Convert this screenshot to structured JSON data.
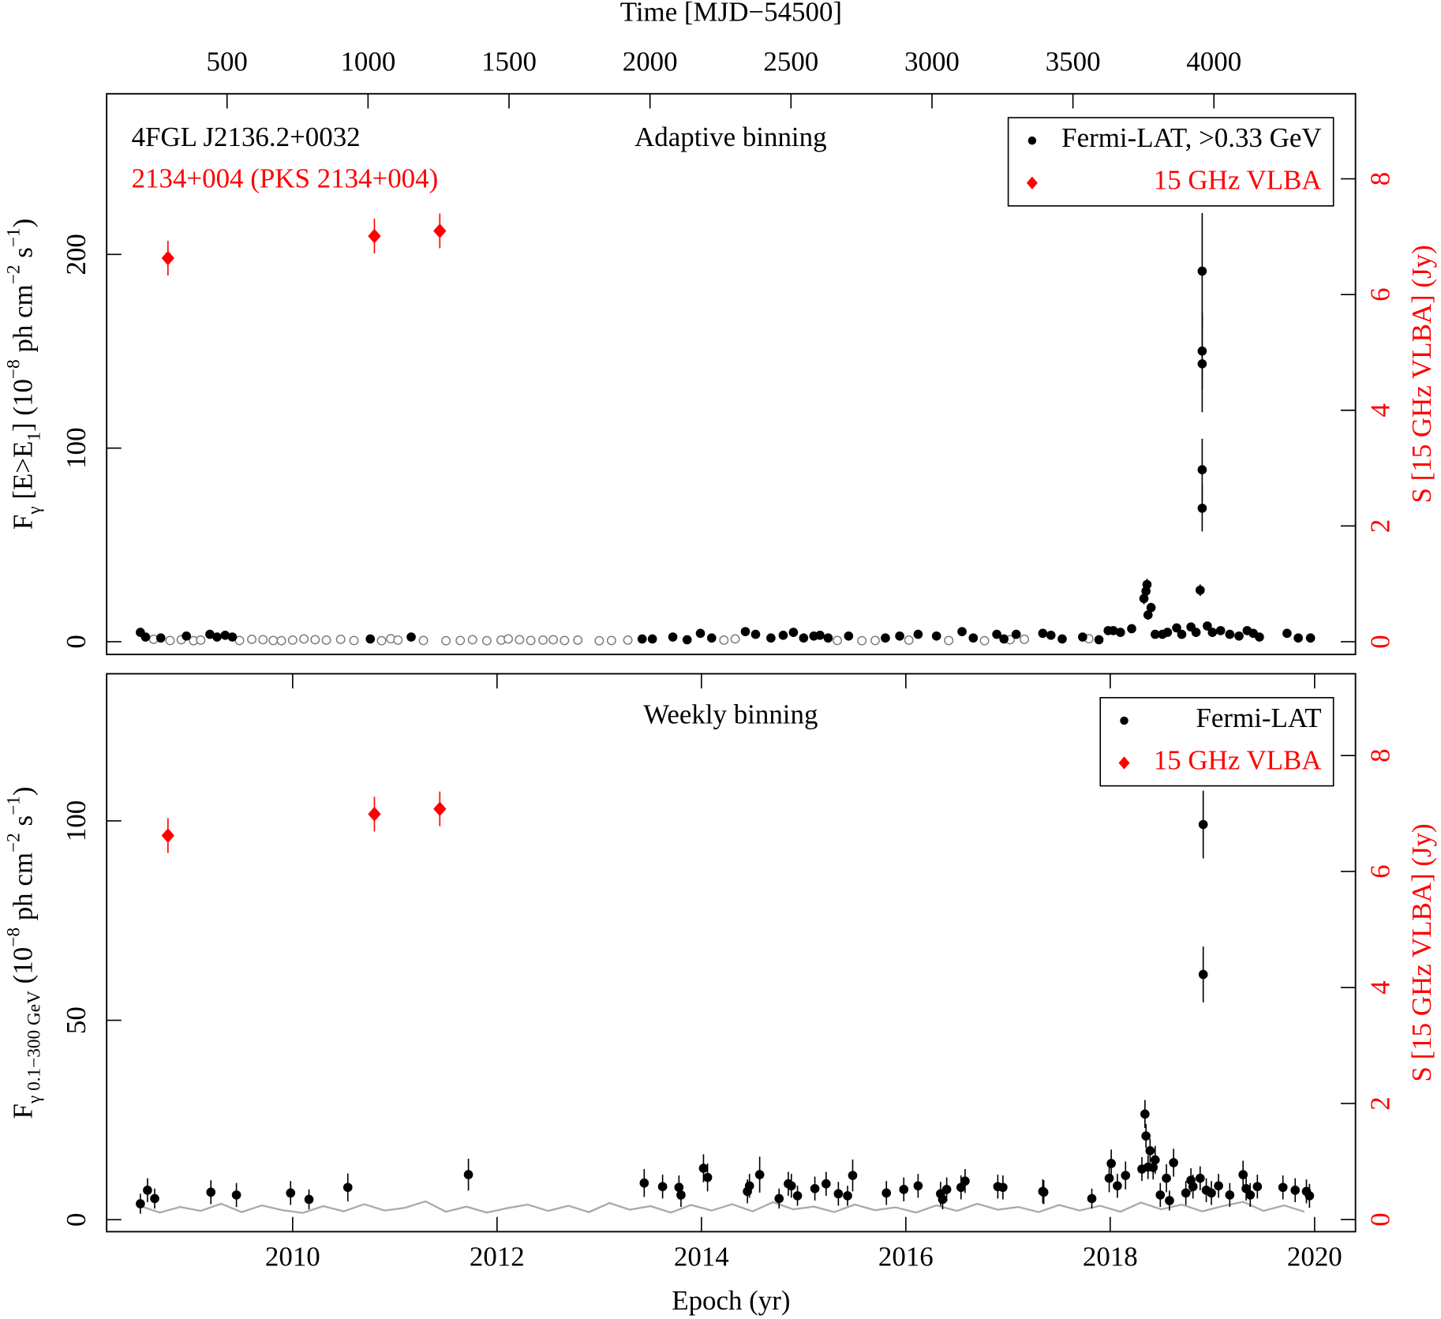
{
  "chart_data": [
    {
      "type": "scatter",
      "title": "Adaptive binning",
      "annotations": [
        {
          "text": "4FGL J2136.2+0032",
          "color": "#000000"
        },
        {
          "text": "2134+004 (PKS 2134+004)",
          "color": "#ff0000"
        }
      ],
      "ylabel": [
        "F",
        "γ",
        " [E>E",
        "1",
        "] (10",
        "−8",
        " ph cm",
        "−2",
        " s",
        "−1",
        ")"
      ],
      "y2label": "S [15 GHz VLBA] (Jy)",
      "y2color": "#ff0000",
      "x2label": "Time [MJD−54500]",
      "xlim": [
        2008.18,
        2020.4
      ],
      "x2lim": [
        73,
        4502
      ],
      "x2ticks": [
        500,
        1000,
        1500,
        2000,
        2500,
        3000,
        3500,
        4000
      ],
      "ylim": [
        -6.6,
        283
      ],
      "yticks": [
        0,
        100,
        200
      ],
      "y2lim": [
        -0.22,
        9.47
      ],
      "y2ticks": [
        0,
        2,
        4,
        6,
        8
      ],
      "legend": "upper right",
      "series": [
        {
          "marker": "open-circle",
          "color": "#777777",
          "x": [
            2008.64,
            2008.8,
            2008.91,
            2009.03,
            2009.1,
            2009.48,
            2009.6,
            2009.71,
            2009.81,
            2009.89,
            2010.0,
            2010.11,
            2010.22,
            2010.33,
            2010.47,
            2010.6,
            2010.87,
            2010.96,
            2011.03,
            2011.28,
            2011.5,
            2011.64,
            2011.76,
            2011.9,
            2012.04,
            2012.11,
            2012.22,
            2012.33,
            2012.45,
            2012.55,
            2012.66,
            2012.79,
            2013.0,
            2013.12,
            2013.28,
            2014.22,
            2014.33,
            2015.33,
            2015.57,
            2015.7,
            2016.03,
            2016.42,
            2016.77,
            2017.02,
            2017.16,
            2017.79
          ],
          "values": [
            1.2,
            0.6,
            1.0,
            0.5,
            0.8,
            0.6,
            1.2,
            1.0,
            0.6,
            0.5,
            0.8,
            1.4,
            1.0,
            0.8,
            1.2,
            0.6,
            0.5,
            1.5,
            0.8,
            0.6,
            0.5,
            0.6,
            1.0,
            0.5,
            0.8,
            1.4,
            1.0,
            0.6,
            0.8,
            1.0,
            0.6,
            0.8,
            0.5,
            0.6,
            0.8,
            0.8,
            1.4,
            0.6,
            0.5,
            0.6,
            0.8,
            0.6,
            0.5,
            1.0,
            1.2,
            1.5
          ]
        },
        {
          "name": "Fermi-LAT, >0.33 GeV",
          "marker": "filled-circle",
          "color": "#000000",
          "x": [
            2008.51,
            2008.56,
            2008.71,
            2008.96,
            2009.19,
            2009.26,
            2009.34,
            2009.41,
            2010.76,
            2011.16,
            2013.42,
            2013.52,
            2013.72,
            2013.86,
            2013.99,
            2014.1,
            2014.43,
            2014.53,
            2014.68,
            2014.8,
            2014.9,
            2015.0,
            2015.1,
            2015.16,
            2015.24,
            2015.44,
            2015.8,
            2015.94,
            2016.12,
            2016.3,
            2016.55,
            2016.66,
            2016.89,
            2016.96,
            2017.08,
            2017.34,
            2017.42,
            2017.53,
            2017.73,
            2017.89,
            2017.98,
            2018.03,
            2018.1,
            2018.21,
            2018.33,
            2018.35,
            2018.36,
            2018.37,
            2018.4,
            2018.44,
            2018.51,
            2018.56,
            2018.65,
            2018.7,
            2018.79,
            2018.84,
            2018.88,
            2018.9,
            2018.9,
            2018.9,
            2018.9,
            2018.9,
            2018.95,
            2019.0,
            2019.08,
            2019.17,
            2019.26,
            2019.34,
            2019.4,
            2019.46,
            2019.73,
            2019.84,
            2019.96
          ],
          "values": [
            4.8,
            2.4,
            1.9,
            2.9,
            3.8,
            2.4,
            3.3,
            2.4,
            1.4,
            2.4,
            1.4,
            1.4,
            2.4,
            1.0,
            4.3,
            1.9,
            5.2,
            3.8,
            1.9,
            3.3,
            4.8,
            1.9,
            2.9,
            3.3,
            1.9,
            2.9,
            1.9,
            2.9,
            3.8,
            2.9,
            5.2,
            1.9,
            3.8,
            1.4,
            3.8,
            4.3,
            3.3,
            1.4,
            2.4,
            1.0,
            5.7,
            5.7,
            4.8,
            6.7,
            22.3,
            26.1,
            29.5,
            13.8,
            17.6,
            3.8,
            3.8,
            4.8,
            7.1,
            3.8,
            7.6,
            4.8,
            26.6,
            68.9,
            88.8,
            143.5,
            150.1,
            191.4,
            8.1,
            4.8,
            5.7,
            3.8,
            2.9,
            5.7,
            4.3,
            2.4,
            4.3,
            1.9,
            1.9
          ],
          "errors": [
            1,
            1,
            1,
            1,
            1,
            1,
            1,
            1,
            1,
            1,
            1,
            1,
            1,
            1,
            1,
            1,
            1,
            1,
            1,
            1,
            1,
            1,
            1,
            1,
            1,
            1,
            1,
            1,
            1,
            1,
            1,
            1,
            1,
            1,
            1,
            1,
            1,
            1,
            1,
            1,
            1.5,
            1.5,
            1.5,
            1.5,
            3,
            3,
            3,
            2.5,
            2.5,
            1.5,
            1.5,
            1.5,
            1.5,
            1.5,
            1.5,
            1.5,
            3,
            12,
            16,
            25,
            20,
            30,
            2,
            1.5,
            1.5,
            1,
            1,
            1,
            1,
            1,
            1,
            1,
            1
          ]
        },
        {
          "name": "15 GHz VLBA",
          "marker": "diamond",
          "color": "#ff0000",
          "axis": "y2",
          "x": [
            2008.78,
            2010.8,
            2011.44
          ],
          "values": [
            6.63,
            7.01,
            7.1
          ],
          "errors": [
            0.3,
            0.3,
            0.3
          ]
        }
      ]
    },
    {
      "type": "scatter",
      "title": "Weekly binning",
      "ylabel": [
        "F",
        "γ 0.1−300 GeV",
        " (10",
        "−8",
        " ph cm",
        "−2",
        " s",
        "−1",
        ")"
      ],
      "y2label": "S [15 GHz VLBA] (Jy)",
      "y2color": "#ff0000",
      "xlabel": "Epoch (yr)",
      "xlim": [
        2008.18,
        2020.4
      ],
      "xticks": [
        2010,
        2012,
        2014,
        2016,
        2018,
        2020
      ],
      "ylim": [
        -3.0,
        136.9
      ],
      "yticks": [
        0,
        50,
        100
      ],
      "y2lim": [
        -0.21,
        9.41
      ],
      "y2ticks": [
        0,
        2,
        4,
        6,
        8
      ],
      "legend": "upper right",
      "series": [
        {
          "marker": "limit-line",
          "color": "#aaaaaa",
          "x": [
            2008.5,
            2008.7,
            2008.9,
            2009.1,
            2009.3,
            2009.5,
            2009.7,
            2009.9,
            2010.1,
            2010.3,
            2010.5,
            2010.7,
            2010.9,
            2011.1,
            2011.3,
            2011.5,
            2011.7,
            2011.9,
            2012.1,
            2012.3,
            2012.5,
            2012.7,
            2012.9,
            2013.1,
            2013.3,
            2013.5,
            2013.7,
            2013.9,
            2014.1,
            2014.3,
            2014.5,
            2014.7,
            2014.9,
            2015.1,
            2015.3,
            2015.5,
            2015.7,
            2015.9,
            2016.1,
            2016.3,
            2016.5,
            2016.7,
            2016.9,
            2017.1,
            2017.3,
            2017.5,
            2017.7,
            2017.9,
            2018.1,
            2018.3,
            2018.5,
            2018.7,
            2018.9,
            2019.1,
            2019.3,
            2019.5,
            2019.7,
            2019.9
          ],
          "values": [
            3.5,
            1.8,
            3.2,
            2.2,
            4.0,
            1.9,
            3.6,
            2.4,
            1.7,
            3.4,
            2.1,
            3.9,
            2.3,
            3.0,
            4.6,
            2.0,
            3.3,
            1.8,
            2.9,
            3.8,
            2.2,
            3.5,
            1.9,
            4.2,
            2.5,
            3.4,
            1.8,
            3.7,
            2.3,
            3.9,
            2.1,
            4.4,
            2.6,
            3.3,
            1.9,
            3.8,
            2.4,
            3.1,
            1.8,
            3.6,
            2.2,
            4.0,
            2.5,
            3.2,
            1.9,
            3.7,
            2.3,
            3.5,
            2.0,
            4.3,
            2.6,
            3.8,
            2.1,
            3.4,
            4.5,
            2.2,
            3.6,
            2.0
          ]
        },
        {
          "name": "Fermi-LAT",
          "marker": "filled-circle",
          "color": "#000000",
          "x": [
            2008.51,
            2008.58,
            2008.65,
            2009.2,
            2009.45,
            2009.98,
            2010.16,
            2010.54,
            2011.72,
            2013.44,
            2013.62,
            2013.78,
            2013.8,
            2014.02,
            2014.06,
            2014.45,
            2014.47,
            2014.57,
            2014.76,
            2014.85,
            2014.88,
            2014.94,
            2015.11,
            2015.22,
            2015.34,
            2015.43,
            2015.48,
            2015.81,
            2015.98,
            2016.12,
            2016.34,
            2016.36,
            2016.4,
            2016.54,
            2016.58,
            2016.9,
            2016.95,
            2017.34,
            2017.35,
            2017.82,
            2017.99,
            2018.01,
            2018.07,
            2018.15,
            2018.31,
            2018.34,
            2018.35,
            2018.37,
            2018.39,
            2018.42,
            2018.44,
            2018.49,
            2018.55,
            2018.58,
            2018.62,
            2018.74,
            2018.79,
            2018.81,
            2018.88,
            2018.91,
            2018.91,
            2018.94,
            2018.99,
            2019.06,
            2019.17,
            2019.3,
            2019.33,
            2019.37,
            2019.44,
            2019.69,
            2019.81,
            2019.92,
            2019.95
          ],
          "values": [
            4.0,
            7.4,
            5.3,
            6.9,
            6.2,
            6.7,
            5.1,
            8.1,
            11.3,
            9.2,
            8.3,
            8.1,
            6.2,
            12.9,
            10.6,
            7.1,
            8.5,
            11.3,
            5.3,
            9.0,
            8.5,
            6.0,
            7.8,
            9.0,
            6.5,
            6.0,
            11.1,
            6.7,
            7.6,
            8.5,
            6.5,
            5.1,
            7.6,
            8.1,
            9.7,
            8.3,
            8.1,
            7.1,
            6.9,
            5.3,
            10.4,
            14.1,
            8.5,
            11.1,
            12.7,
            26.5,
            21.0,
            13.2,
            17.3,
            13.1,
            15.0,
            6.2,
            10.4,
            4.8,
            14.3,
            6.7,
            9.9,
            8.3,
            10.4,
            61.5,
            99.1,
            7.4,
            6.7,
            8.5,
            6.2,
            11.3,
            7.8,
            6.2,
            8.3,
            8.1,
            7.4,
            7.1,
            6.0
          ],
          "errors": [
            2.5,
            3,
            2.5,
            3,
            3,
            3,
            2.5,
            3.5,
            4,
            3.5,
            3,
            3,
            3,
            3.5,
            3.5,
            3,
            3,
            4.5,
            2.5,
            3,
            3,
            2.5,
            3,
            3,
            3,
            2.5,
            4,
            3,
            3,
            3,
            3,
            2.5,
            3,
            3,
            3,
            3,
            3,
            3,
            3,
            2.5,
            3.5,
            3.5,
            3,
            3.5,
            3,
            3.5,
            3,
            3,
            3,
            3,
            3.5,
            3,
            3.5,
            2.5,
            3.5,
            3,
            3,
            3,
            3,
            7,
            8.5,
            3,
            3,
            3,
            3,
            3.5,
            3,
            3,
            3,
            3,
            3,
            3,
            3
          ]
        },
        {
          "name": "15 GHz VLBA",
          "marker": "diamond",
          "color": "#ff0000",
          "axis": "y2",
          "x": [
            2008.78,
            2010.8,
            2011.44
          ],
          "values": [
            6.62,
            6.99,
            7.08
          ],
          "errors": [
            0.3,
            0.3,
            0.3
          ]
        }
      ]
    }
  ]
}
